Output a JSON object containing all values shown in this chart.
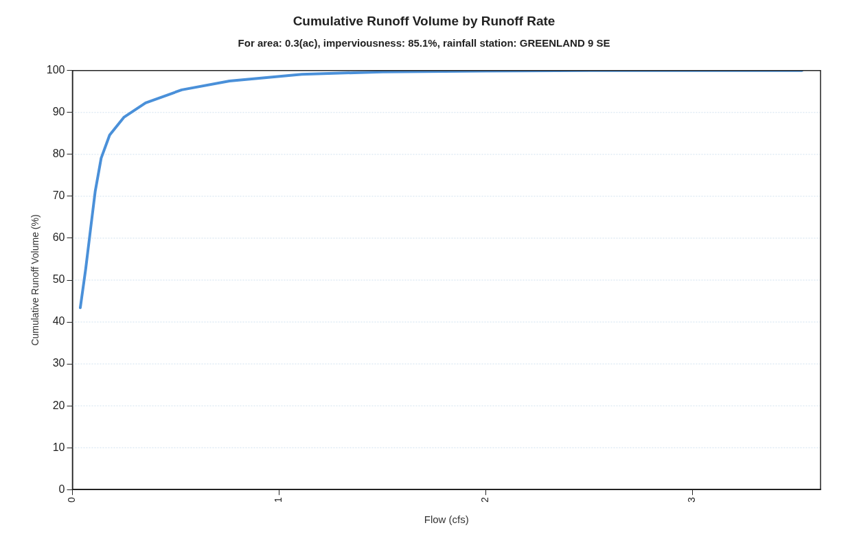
{
  "chart_data": {
    "type": "line",
    "title": "Cumulative Runoff Volume by Runoff Rate",
    "subtitle": "For area: 0.3(ac), imperviousness: 85.1%, rainfall station: GREENLAND 9 SE",
    "xlabel": "Flow (cfs)",
    "ylabel": "Cumulative Runoff Volume (%)",
    "x": [
      0.038,
      0.064,
      0.087,
      0.11,
      0.139,
      0.18,
      0.25,
      0.354,
      0.529,
      0.76,
      1.11,
      1.5,
      2,
      2.5,
      3,
      3.53
    ],
    "series": [
      {
        "color": "#4a90d9",
        "values": [
          43.4,
          52.6,
          61.9,
          71.1,
          79.1,
          84.6,
          88.9,
          92.3,
          95.4,
          97.5,
          99.1,
          99.7,
          99.9,
          100,
          100,
          100
        ]
      }
    ],
    "xlim": [
      0,
      3.62
    ],
    "xticks": [
      0,
      1,
      2,
      3
    ],
    "ylim": [
      0,
      100
    ],
    "yticks": [
      0,
      10,
      20,
      30,
      40,
      50,
      60,
      70,
      80,
      90,
      100
    ],
    "grid": "y",
    "legend": false,
    "marker": "none",
    "line_style": "solid"
  }
}
